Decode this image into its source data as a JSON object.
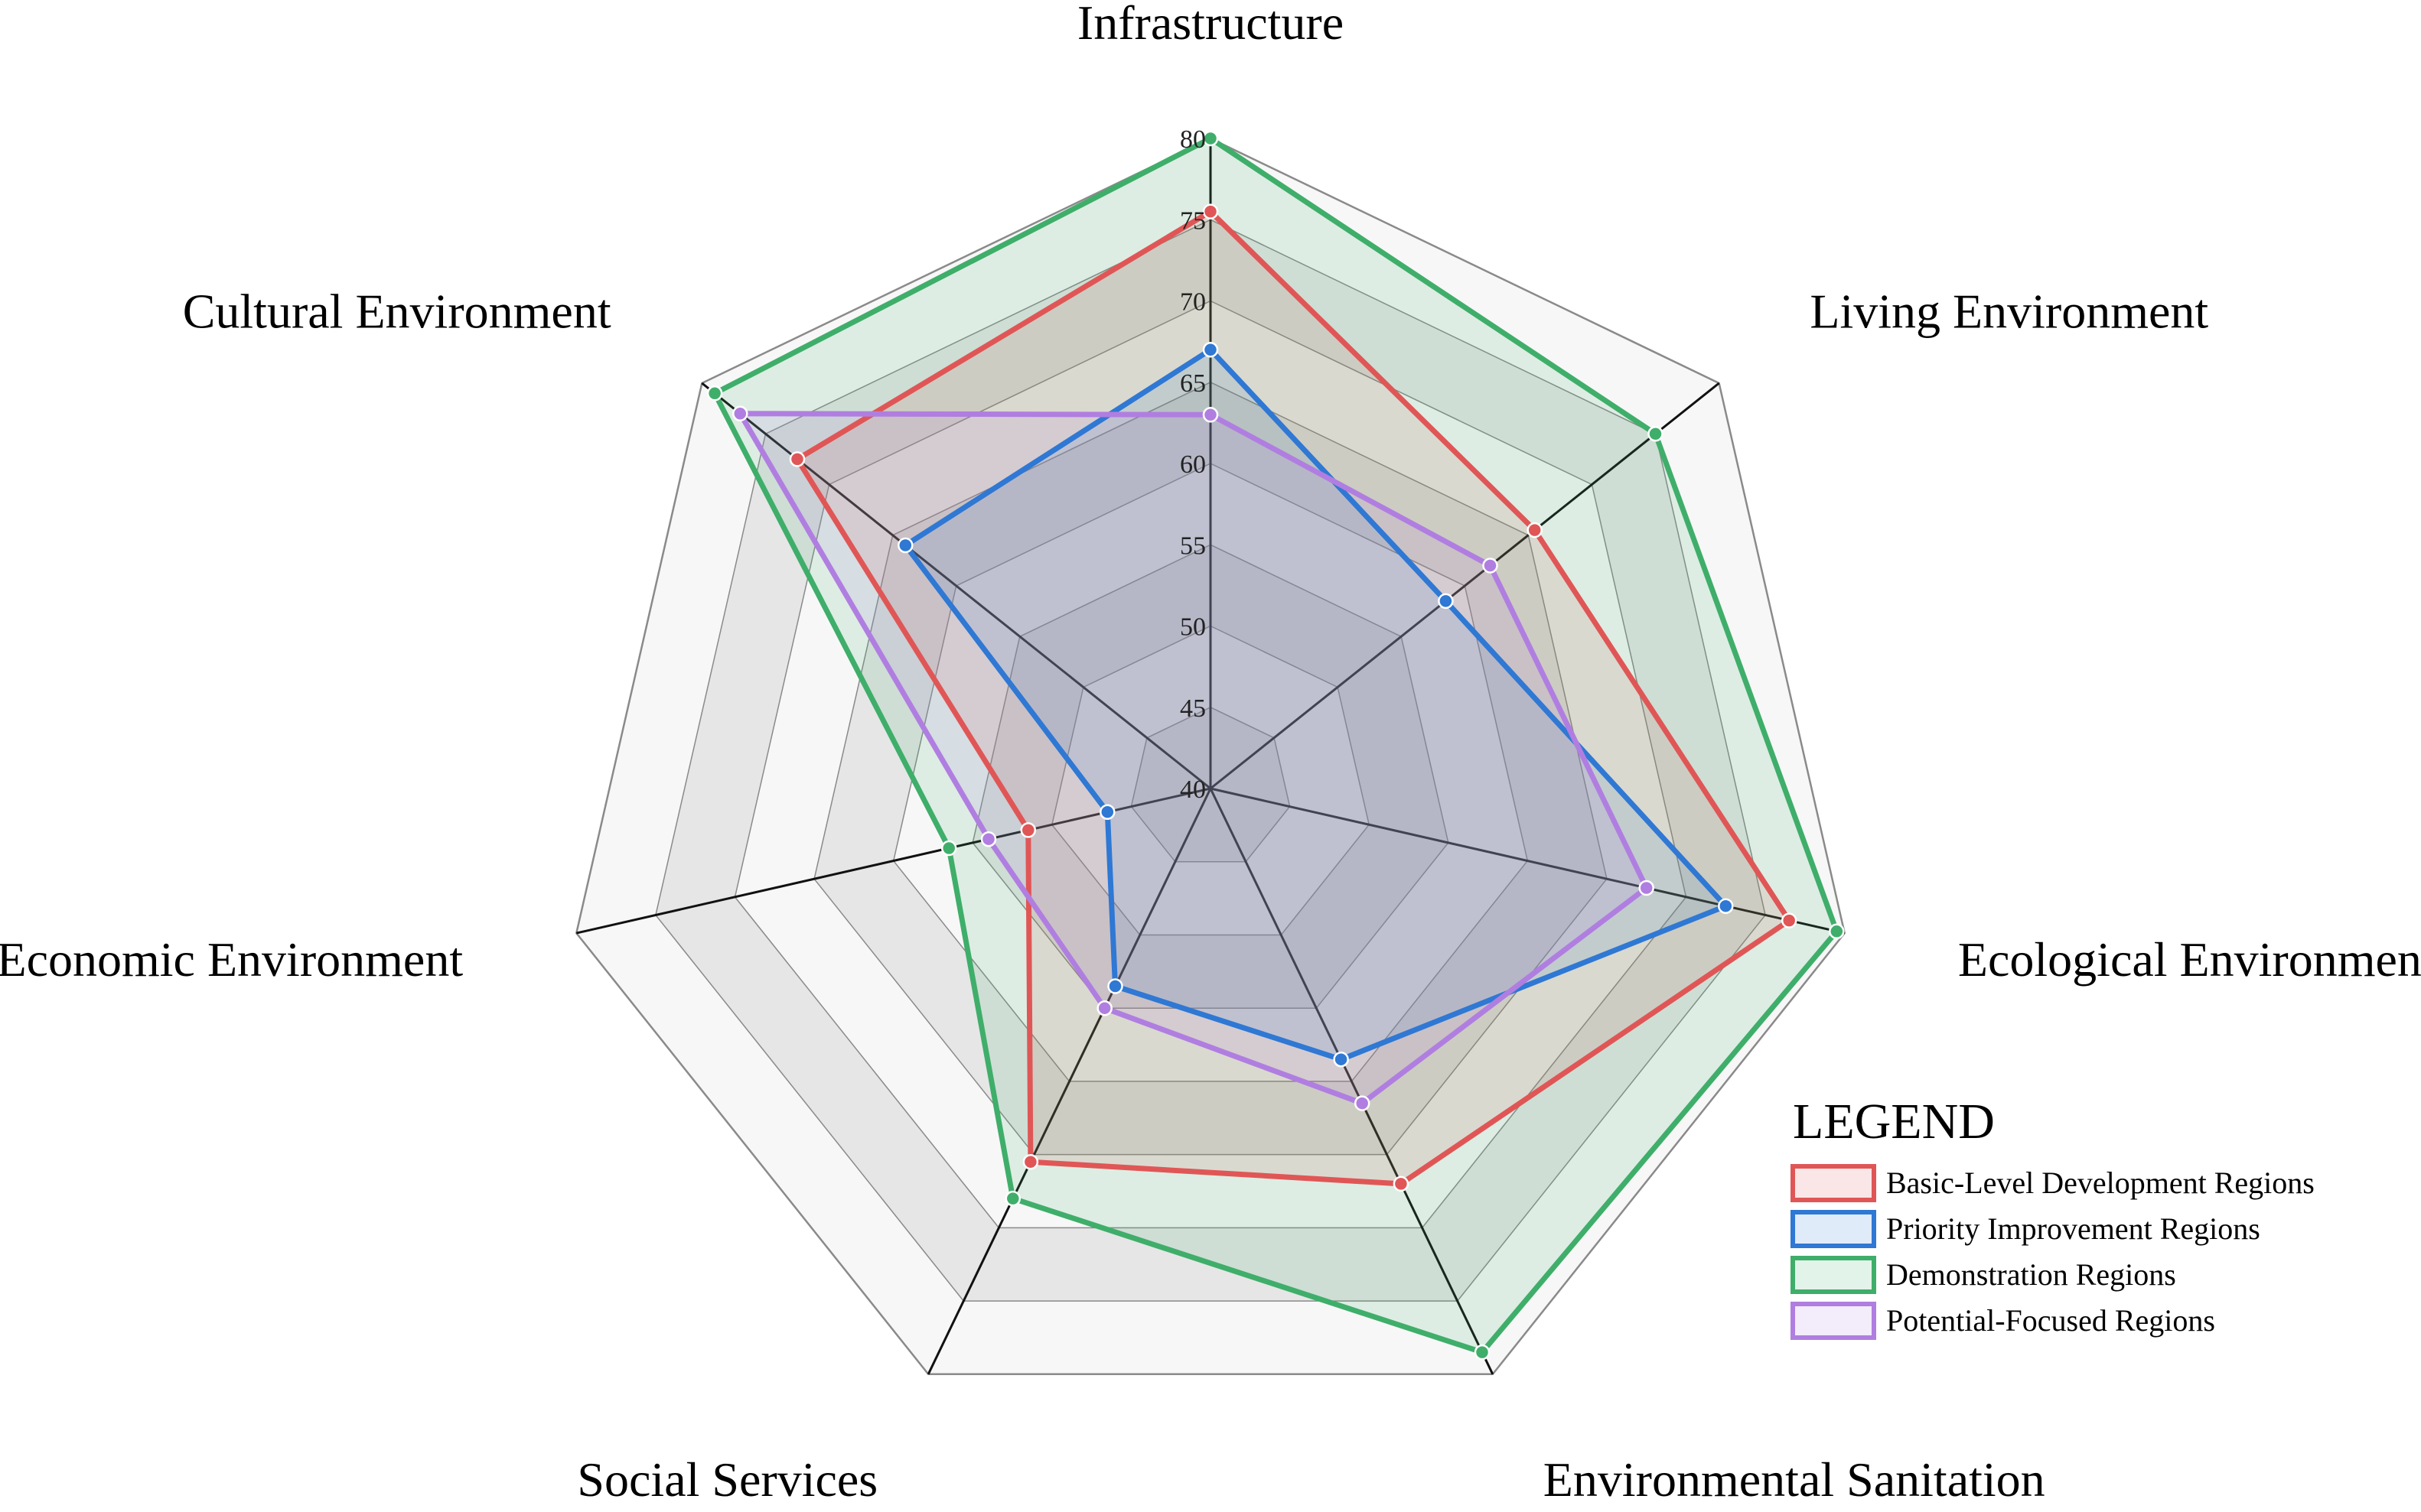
{
  "chart_data": {
    "type": "radar",
    "title": "",
    "axes": [
      "Infrastructure",
      "Living Environment",
      "Ecological Environment",
      "Environmental Sanitation",
      "Social Services",
      "Economic Environment",
      "Cultural Environment"
    ],
    "rlim": [
      40,
      80
    ],
    "ticks": [
      40,
      45,
      50,
      55,
      60,
      65,
      70,
      75,
      80
    ],
    "ring_colors": [
      "#f7f7f7",
      "#e6e6e6"
    ],
    "legend_title": "LEGEND",
    "legend_position": "bottom-right",
    "series": [
      {
        "name": "Basic-Level Development Regions",
        "color": "#e05656",
        "fill": "#e05656",
        "values": [
          75.5,
          65.5,
          76.5,
          67,
          65.5,
          51.5,
          72.5
        ]
      },
      {
        "name": "Priority Improvement Regions",
        "color": "#2f78d4",
        "fill": "#2f78d4",
        "values": [
          67,
          58.5,
          72.5,
          58.5,
          53.5,
          46.5,
          64
        ]
      },
      {
        "name": "Demonstration Regions",
        "color": "#3fae6a",
        "fill": "#3fae6a",
        "values": [
          80,
          75,
          79.5,
          78.5,
          68,
          56.5,
          79
        ]
      },
      {
        "name": "Potential-Focused Regions",
        "color": "#b07ee0",
        "fill": "#b07ee0",
        "values": [
          63,
          62,
          67.5,
          61.5,
          55,
          54,
          77
        ]
      }
    ]
  }
}
